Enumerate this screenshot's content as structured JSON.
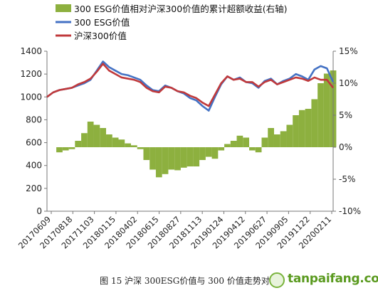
{
  "chart_data": {
    "type": "line",
    "title": "",
    "legend": [
      {
        "name": "300 ESG价值相对沪深300价值的累计超额收益(右轴)",
        "color": "#8db03f",
        "kind": "area"
      },
      {
        "name": "300 ESG价值",
        "color": "#4472c4",
        "kind": "line"
      },
      {
        "name": "沪深300价值",
        "color": "#c0393b",
        "kind": "line"
      }
    ],
    "legend_position": "top-left",
    "x_tick_labels": [
      "20170609",
      "20170818",
      "20171103",
      "20180115",
      "20180402",
      "20180615",
      "20180827",
      "20181113",
      "20190124",
      "20190412",
      "20190627",
      "20190905",
      "20191122",
      "20200211"
    ],
    "y_left": {
      "min": 0,
      "max": 1400,
      "step": 200,
      "ticks": [
        "0",
        "200",
        "400",
        "600",
        "800",
        "1000",
        "1200",
        "1400"
      ]
    },
    "y_right": {
      "min": -10,
      "max": 15,
      "step": 5,
      "ticks": [
        "-10%",
        "-5%",
        "0%",
        "5%",
        "10%",
        "15%"
      ]
    },
    "grid": false,
    "series": [
      {
        "name": "300 ESG价值",
        "axis": "left",
        "values": [
          1000,
          1040,
          1060,
          1070,
          1080,
          1100,
          1120,
          1150,
          1230,
          1310,
          1260,
          1230,
          1200,
          1190,
          1170,
          1150,
          1100,
          1060,
          1050,
          1100,
          1080,
          1050,
          1030,
          990,
          970,
          920,
          880,
          1000,
          1110,
          1180,
          1150,
          1170,
          1130,
          1120,
          1080,
          1140,
          1160,
          1110,
          1140,
          1160,
          1200,
          1180,
          1150,
          1240,
          1270,
          1250,
          1130
        ]
      },
      {
        "name": "沪深300价值",
        "axis": "left",
        "values": [
          1000,
          1040,
          1060,
          1070,
          1080,
          1110,
          1130,
          1160,
          1220,
          1290,
          1230,
          1200,
          1170,
          1160,
          1150,
          1130,
          1080,
          1050,
          1040,
          1090,
          1080,
          1050,
          1040,
          1010,
          990,
          950,
          920,
          1020,
          1120,
          1180,
          1150,
          1160,
          1130,
          1130,
          1090,
          1130,
          1150,
          1110,
          1130,
          1150,
          1170,
          1160,
          1140,
          1170,
          1150,
          1150,
          1080
        ]
      },
      {
        "name": "300 ESG价值相对沪深300价值的累计超额收益(右轴)",
        "axis": "right",
        "values": [
          0,
          0,
          -0.8,
          -0.5,
          -0.3,
          1.0,
          2.2,
          4.0,
          3.5,
          3.0,
          2.0,
          1.5,
          1.2,
          0.6,
          0.3,
          -0.3,
          -2.0,
          -3.5,
          -4.7,
          -4.2,
          -3.5,
          -3.6,
          -3.2,
          -3.0,
          -3.0,
          -2.0,
          -1.5,
          -1.8,
          -0.5,
          0.5,
          1.0,
          1.8,
          1.5,
          -0.5,
          -0.8,
          1.5,
          3.0,
          2.0,
          2.5,
          3.5,
          5.0,
          5.8,
          6.0,
          7.5,
          10.0,
          11.5,
          12.0
        ]
      }
    ]
  },
  "caption": "图  15  沪深 300ESG价值与 300 价值走势对比",
  "watermark": "tanpaifang.com"
}
